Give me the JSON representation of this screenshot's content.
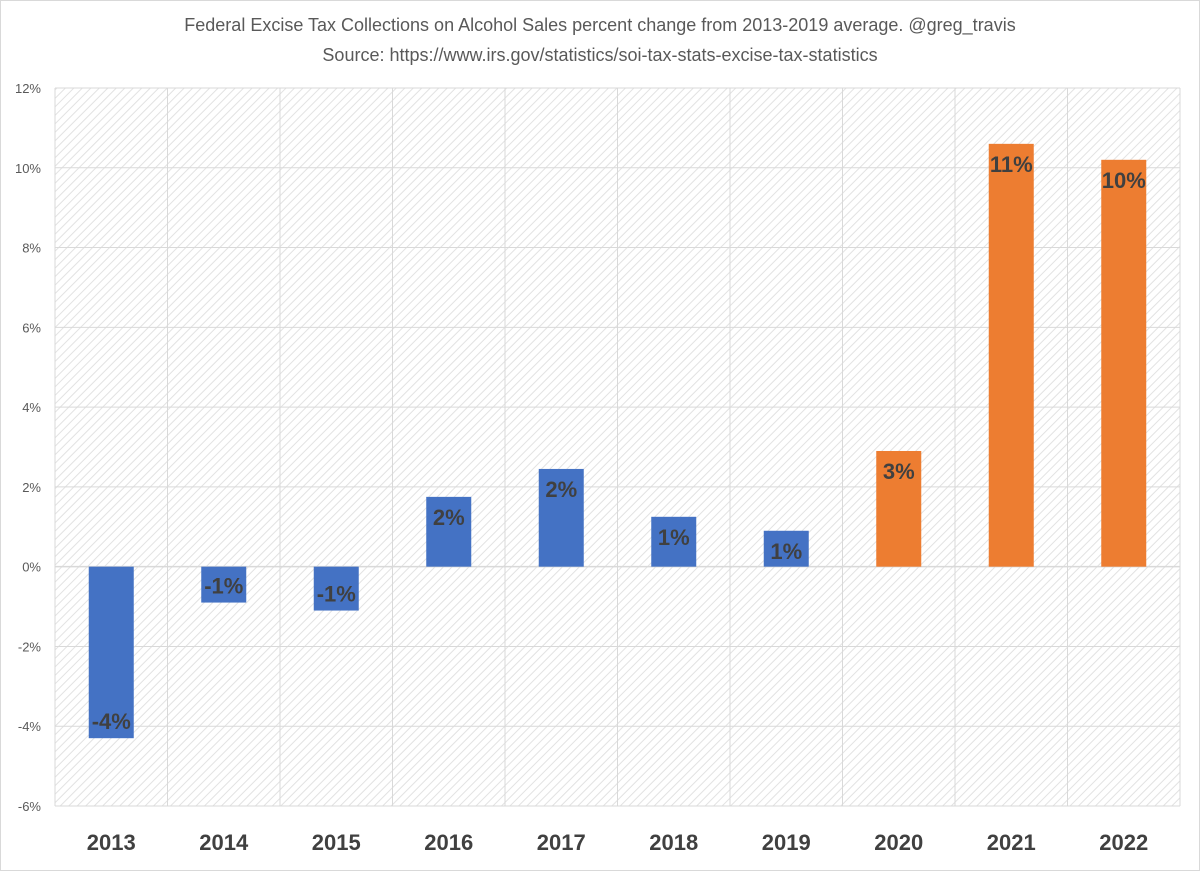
{
  "chart_data": {
    "type": "bar",
    "title": "Federal Excise Tax Collections on Alcohol Sales percent change from 2013-2019 average.  @greg_travis",
    "subtitle": "Source: https://www.irs.gov/statistics/soi-tax-stats-excise-tax-statistics",
    "categories": [
      "2013",
      "2014",
      "2015",
      "2016",
      "2017",
      "2018",
      "2019",
      "2020",
      "2021",
      "2022"
    ],
    "values": [
      -4.3,
      -0.9,
      -1.1,
      1.75,
      2.45,
      1.25,
      0.9,
      2.9,
      10.6,
      10.2
    ],
    "data_labels": [
      "-4%",
      "-1%",
      "-1%",
      "2%",
      "2%",
      "1%",
      "1%",
      "3%",
      "11%",
      "10%"
    ],
    "bar_colors": [
      "#4472c4",
      "#4472c4",
      "#4472c4",
      "#4472c4",
      "#4472c4",
      "#4472c4",
      "#4472c4",
      "#ed7d31",
      "#ed7d31",
      "#ed7d31"
    ],
    "xlabel": "",
    "ylabel": "",
    "ylim": [
      -6,
      12
    ],
    "yticks": [
      12,
      10,
      8,
      6,
      4,
      2,
      0,
      -2,
      -4,
      -6
    ],
    "ytick_labels": [
      "12%",
      "10%",
      "8%",
      "6%",
      "4%",
      "2%",
      "0%",
      "-2%",
      "-4%",
      "-6%"
    ],
    "grid": true,
    "legend": "none",
    "colors": {
      "series_blue": "#4472c4",
      "series_orange": "#ed7d31",
      "gridline": "#d9d9d9",
      "text": "#404040"
    }
  }
}
